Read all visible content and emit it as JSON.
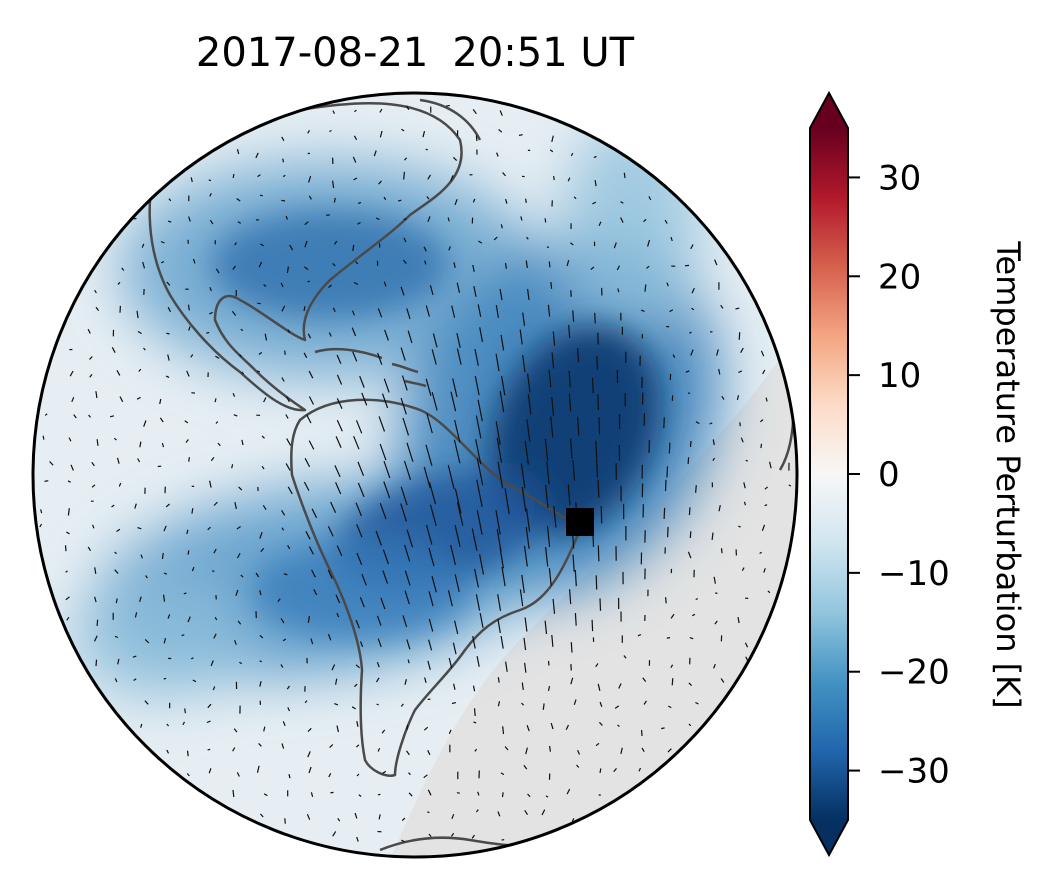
{
  "title": {
    "date": "2017-08-21",
    "time": "20:51 UT"
  },
  "map": {
    "projection": "orthographic",
    "field": "temperature perturbation",
    "coastline_color": "#4a4a4a",
    "night_shade_color": "#e3e3e3",
    "marker": {
      "name": "observation-site",
      "color": "#000000"
    }
  },
  "colorbar": {
    "label": "Temperature Perturbation [K]",
    "colormap": "RdBu_r",
    "range": [
      -35,
      35
    ],
    "extend": "both",
    "ticks": [
      {
        "value": 30,
        "label": "30"
      },
      {
        "value": 20,
        "label": "20"
      },
      {
        "value": 10,
        "label": "10"
      },
      {
        "value": 0,
        "label": "0"
      },
      {
        "value": -10,
        "label": "−10"
      },
      {
        "value": -20,
        "label": "−20"
      },
      {
        "value": -30,
        "label": "−30"
      }
    ],
    "colors": [
      "#053061",
      "#2166ac",
      "#4393c3",
      "#92c5de",
      "#d1e5f0",
      "#f7f7f7",
      "#fddbc7",
      "#f4a582",
      "#d6604d",
      "#b2182b",
      "#67001f"
    ]
  }
}
